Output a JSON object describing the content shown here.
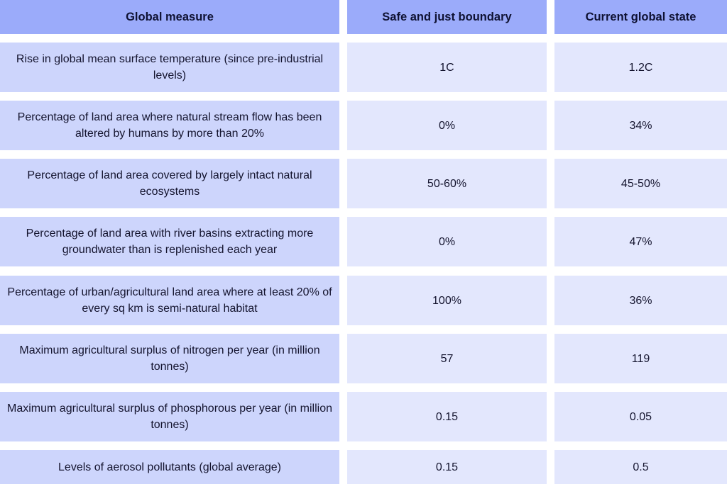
{
  "table": {
    "headers": [
      "Global measure",
      "Safe and just boundary",
      "Current global state"
    ],
    "rows": [
      {
        "measure": "Rise in global mean surface temperature (since pre-industrial levels)",
        "boundary": "1C",
        "current": "1.2C"
      },
      {
        "measure": "Percentage of land area where natural stream flow has been altered by humans by more than 20%",
        "boundary": "0%",
        "current": "34%"
      },
      {
        "measure": "Percentage of land area covered by largely intact natural ecosystems",
        "boundary": "50-60%",
        "current": "45-50%"
      },
      {
        "measure": "Percentage of land area with river basins extracting more groundwater than is replenished each year",
        "boundary": "0%",
        "current": "47%"
      },
      {
        "measure": "Percentage of urban/agricultural land area where at least 20% of every sq km is semi-natural habitat",
        "boundary": "100%",
        "current": "36%"
      },
      {
        "measure": "Maximum agricultural surplus of nitrogen per year (in million tonnes)",
        "boundary": "57",
        "current": "119"
      },
      {
        "measure": "Maximum agricultural surplus of phosphorous per year (in million tonnes)",
        "boundary": "0.15",
        "current": "0.05"
      },
      {
        "measure": "Levels of aerosol pollutants (global average)",
        "boundary": "0.15",
        "current": "0.5"
      }
    ]
  },
  "colors": {
    "header": "#9babfa",
    "measure_cell": "#cdd5fc",
    "value_cell": "#e3e7fd",
    "text": "#14142e"
  }
}
